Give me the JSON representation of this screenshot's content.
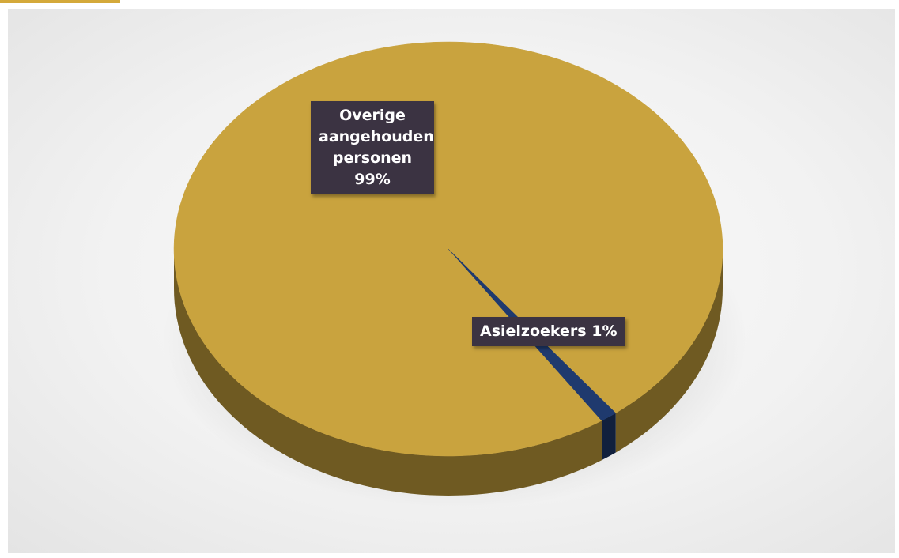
{
  "chart_data": {
    "type": "pie",
    "style": "3d",
    "title": "",
    "slices": [
      {
        "label_lines": [
          "Overige",
          "aangehouden",
          "personen"
        ],
        "percent_text": "99%",
        "value": 99,
        "color": "#c9a33e"
      },
      {
        "label_lines": [
          "Asielzoekers"
        ],
        "percent_text": "1%",
        "value": 1,
        "color": "#1f3a6e"
      }
    ]
  },
  "colors": {
    "accent": "#d4a93a",
    "label_background": "#3b3342",
    "label_text": "#ffffff"
  }
}
